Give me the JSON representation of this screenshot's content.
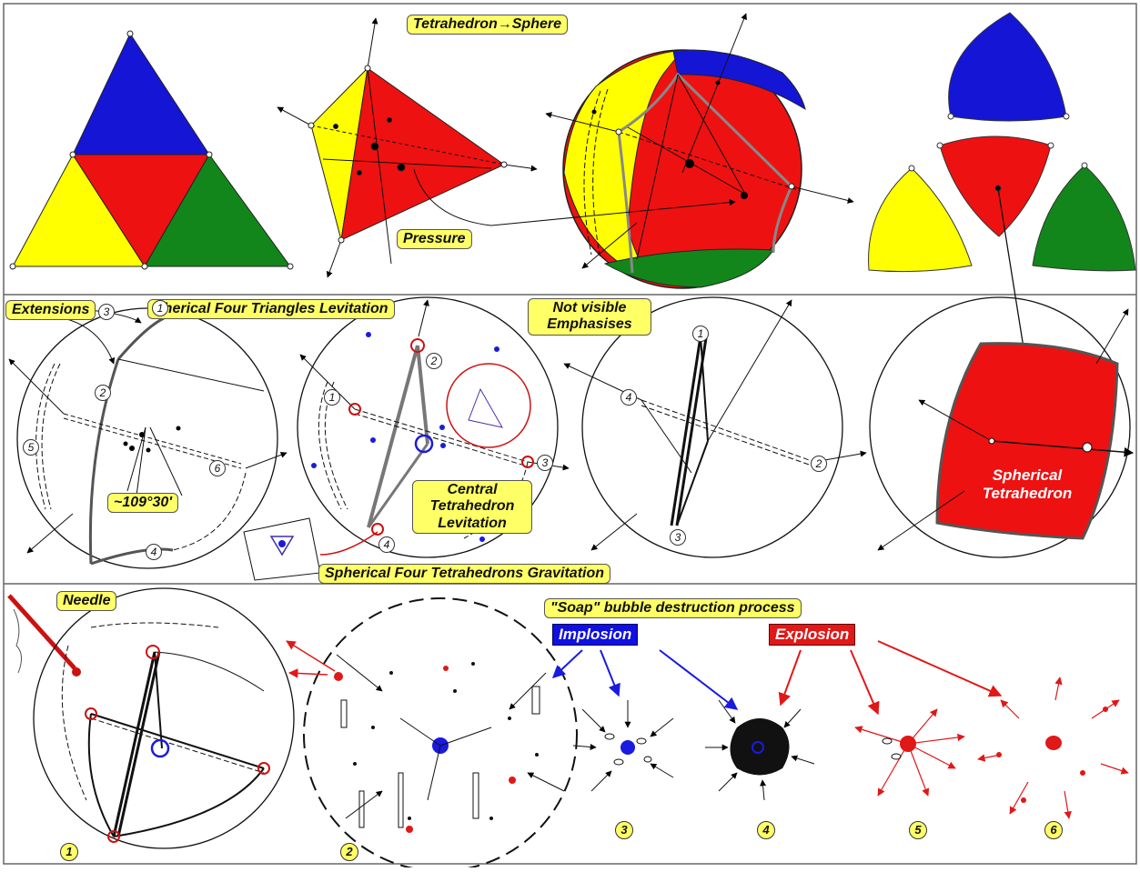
{
  "labels": {
    "tetra_sphere": "Tetrahedron→Sphere",
    "pressure": "Pressure",
    "extensions": "Extensions",
    "pherical": "Pherical Four Triangles  Levitation",
    "not_visible_1": "Not visible",
    "not_visible_2": "Emphasises",
    "angle": "~109°30'",
    "central_1": "Central",
    "central_2": "Tetrahedron",
    "central_3": "Levitation",
    "gravitation": "Spherical Four Tetrahedrons Gravitation",
    "spherical_1": "Spherical",
    "spherical_2": "Tetrahedron",
    "needle": "Needle",
    "soap": "\"Soap\" bubble destruction process",
    "implosion": "Implosion",
    "explosion": "Explosion"
  },
  "row2_numbers": [
    "1",
    "2",
    "3",
    "4",
    "5",
    "6"
  ],
  "row2b_numbers": [
    "1",
    "2",
    "3",
    "4"
  ],
  "row2c_numbers": [
    "1",
    "2",
    "3",
    "4"
  ],
  "stage_numbers": [
    "1",
    "2",
    "3",
    "4",
    "5",
    "6"
  ],
  "colors": {
    "blue": "#1515d6",
    "red": "#ee1111",
    "yellow": "#ffff00",
    "green": "#12861a",
    "label_bg": "#ffff66"
  }
}
